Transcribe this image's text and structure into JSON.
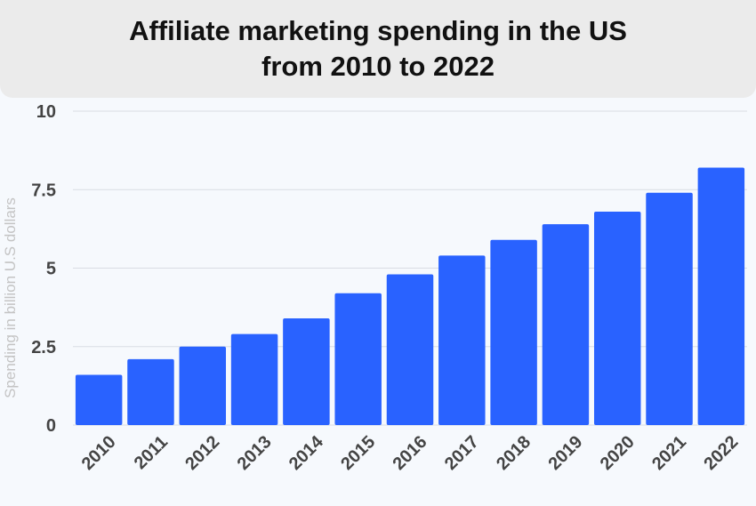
{
  "chart_data": {
    "type": "bar",
    "title": [
      "Affiliate marketing spending in the US",
      "from 2010 to 2022"
    ],
    "ylabel": "Spending in billion U.S dollars",
    "xlabel": "",
    "categories": [
      "2010",
      "2011",
      "2012",
      "2013",
      "2014",
      "2015",
      "2016",
      "2017",
      "2018",
      "2019",
      "2020",
      "2021",
      "2022"
    ],
    "values": [
      1.6,
      2.1,
      2.5,
      2.9,
      3.4,
      4.2,
      4.8,
      5.4,
      5.9,
      6.4,
      6.8,
      7.4,
      8.2
    ],
    "ylim": [
      0,
      10
    ],
    "yticks": [
      0,
      2.5,
      5,
      7.5,
      10
    ],
    "ytick_labels": [
      "0",
      "2.5",
      "5",
      "7.5",
      "10"
    ],
    "grid": true,
    "legend": "none",
    "colors": {
      "bar": "#2962ff",
      "grid": "#d9dde3",
      "background": "#f6f9fd"
    }
  }
}
